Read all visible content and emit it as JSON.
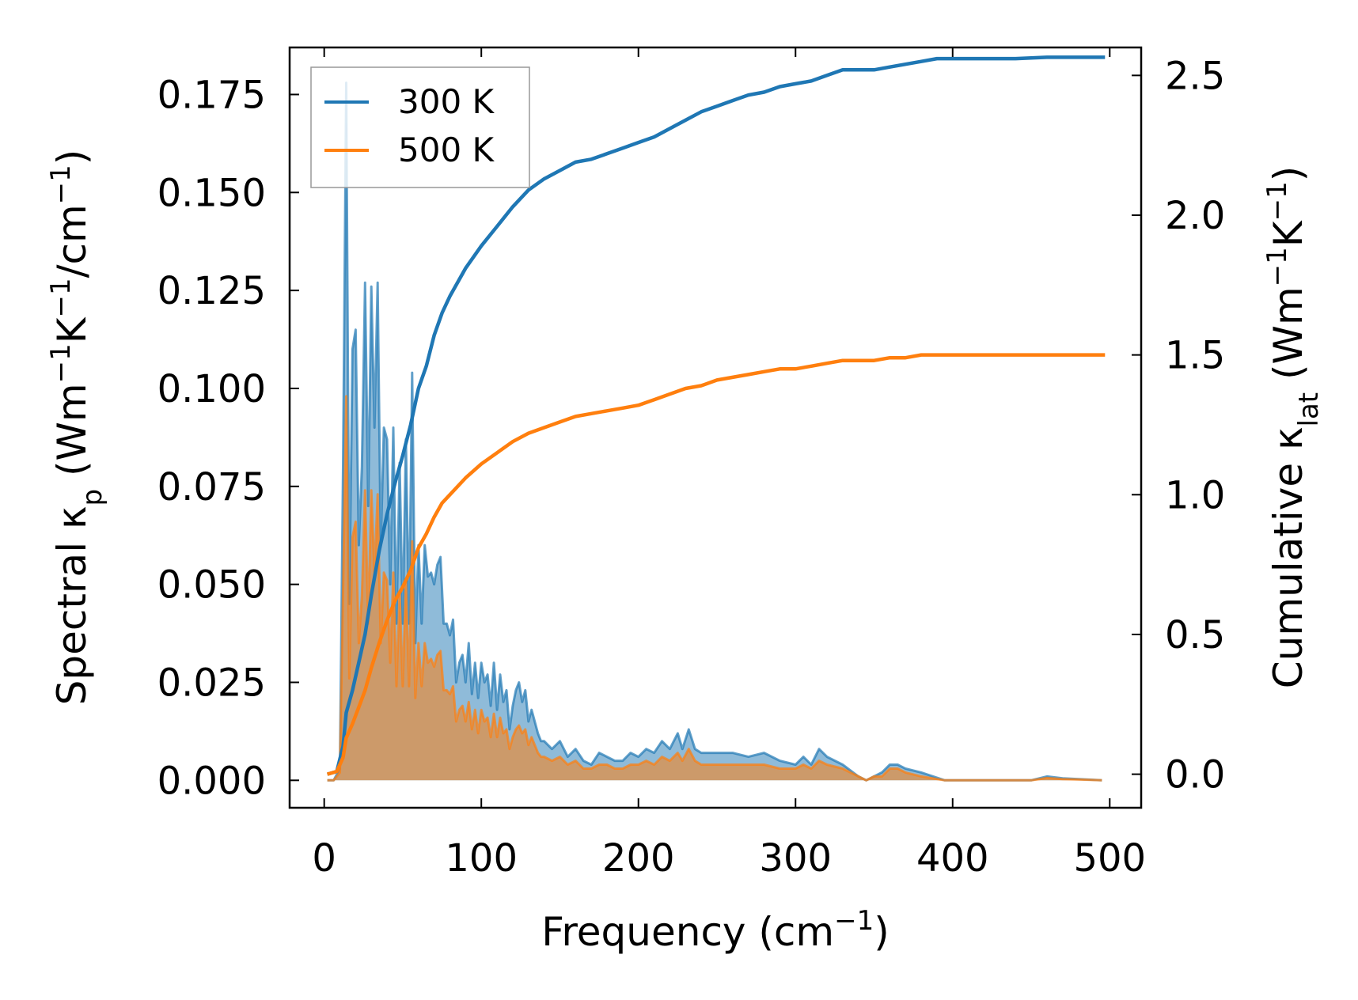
{
  "colors": {
    "series_300": "#1f77b4",
    "series_500": "#ff7f0e",
    "axis": "#000000"
  },
  "chart_data": {
    "type": "line",
    "title": "",
    "xlabel": {
      "base": "Frequency (cm",
      "sup": "−1",
      "tail": ")"
    },
    "ylabel_left": {
      "base": "Spectral κ",
      "sub": "p",
      "unit": " (Wm",
      "sup1": "−1",
      "k": "K",
      "sup2": "−1",
      "slash": "/cm",
      "sup3": "−1",
      "close": ")"
    },
    "ylabel_right": {
      "base": "Cumulative κ",
      "sub": "lat",
      "unit": " (Wm",
      "sup1": "−1",
      "k": "K",
      "sup2": "−1",
      "close": ")"
    },
    "xlim": [
      -22,
      520
    ],
    "ylim_left": [
      -0.007,
      0.187
    ],
    "ylim_right": [
      -0.12,
      2.6
    ],
    "x_ticks": [
      0,
      100,
      200,
      300,
      400,
      500
    ],
    "x_tick_labels": [
      "0",
      "100",
      "200",
      "300",
      "400",
      "500"
    ],
    "y_left_ticks": [
      0.0,
      0.025,
      0.05,
      0.075,
      0.1,
      0.125,
      0.15,
      0.175
    ],
    "y_left_tick_labels": [
      "0.000",
      "0.025",
      "0.050",
      "0.075",
      "0.100",
      "0.125",
      "0.150",
      "0.175"
    ],
    "y_right_ticks": [
      0.0,
      0.5,
      1.0,
      1.5,
      2.0,
      2.5
    ],
    "y_right_tick_labels": [
      "0.0",
      "0.5",
      "1.0",
      "1.5",
      "2.0",
      "2.5"
    ],
    "legend": {
      "position": "top-left",
      "entries": [
        "300 K",
        "500 K"
      ]
    },
    "spectral": [
      {
        "name": "300 K",
        "x": [
          2,
          6,
          10,
          12,
          14,
          16,
          18,
          20,
          22,
          24,
          26,
          28,
          30,
          32,
          34,
          36,
          38,
          40,
          42,
          44,
          46,
          48,
          50,
          52,
          54,
          56,
          58,
          60,
          62,
          64,
          66,
          68,
          70,
          72,
          74,
          76,
          78,
          80,
          82,
          84,
          86,
          88,
          90,
          92,
          94,
          96,
          98,
          100,
          102,
          104,
          106,
          108,
          110,
          112,
          114,
          116,
          118,
          120,
          122,
          124,
          126,
          128,
          130,
          132,
          134,
          136,
          138,
          140,
          145,
          150,
          155,
          160,
          165,
          170,
          175,
          180,
          185,
          190,
          195,
          200,
          205,
          210,
          215,
          220,
          225,
          228,
          232,
          236,
          240,
          250,
          260,
          270,
          280,
          290,
          300,
          305,
          310,
          315,
          320,
          330,
          340,
          345,
          350,
          355,
          360,
          365,
          370,
          380,
          395,
          410,
          430,
          450,
          460,
          470,
          480,
          495
        ],
        "y": [
          0.0,
          0.0,
          0.003,
          0.08,
          0.178,
          0.045,
          0.11,
          0.115,
          0.06,
          0.08,
          0.127,
          0.07,
          0.126,
          0.09,
          0.127,
          0.06,
          0.09,
          0.087,
          0.05,
          0.09,
          0.04,
          0.081,
          0.04,
          0.087,
          0.04,
          0.104,
          0.035,
          0.06,
          0.04,
          0.06,
          0.052,
          0.053,
          0.05,
          0.055,
          0.057,
          0.04,
          0.04,
          0.037,
          0.041,
          0.025,
          0.03,
          0.032,
          0.025,
          0.035,
          0.022,
          0.03,
          0.021,
          0.03,
          0.025,
          0.027,
          0.019,
          0.03,
          0.018,
          0.027,
          0.02,
          0.023,
          0.013,
          0.019,
          0.023,
          0.025,
          0.02,
          0.023,
          0.015,
          0.018,
          0.015,
          0.012,
          0.01,
          0.01,
          0.008,
          0.01,
          0.006,
          0.008,
          0.005,
          0.004,
          0.007,
          0.006,
          0.005,
          0.005,
          0.007,
          0.006,
          0.008,
          0.007,
          0.01,
          0.008,
          0.012,
          0.008,
          0.013,
          0.008,
          0.007,
          0.007,
          0.007,
          0.006,
          0.007,
          0.005,
          0.004,
          0.006,
          0.004,
          0.008,
          0.006,
          0.004,
          0.001,
          0.0,
          0.001,
          0.002,
          0.004,
          0.004,
          0.003,
          0.002,
          0.0,
          0.0,
          0.0,
          0.0,
          0.001,
          0.0005,
          0.0003,
          0.0
        ]
      },
      {
        "name": "500 K",
        "x": [
          2,
          6,
          10,
          12,
          14,
          16,
          18,
          20,
          22,
          24,
          26,
          28,
          30,
          32,
          34,
          36,
          38,
          40,
          42,
          44,
          46,
          48,
          50,
          52,
          54,
          56,
          58,
          60,
          62,
          64,
          66,
          68,
          70,
          72,
          74,
          76,
          78,
          80,
          82,
          84,
          86,
          88,
          90,
          92,
          94,
          96,
          98,
          100,
          102,
          104,
          106,
          108,
          110,
          112,
          114,
          116,
          118,
          120,
          122,
          124,
          126,
          128,
          130,
          132,
          134,
          136,
          138,
          140,
          145,
          150,
          155,
          160,
          165,
          170,
          175,
          180,
          185,
          190,
          195,
          200,
          205,
          210,
          215,
          220,
          225,
          228,
          232,
          236,
          240,
          250,
          260,
          270,
          280,
          290,
          300,
          305,
          310,
          315,
          320,
          330,
          340,
          345,
          350,
          355,
          360,
          365,
          370,
          380,
          395,
          410,
          430,
          450,
          460,
          470,
          480,
          495
        ],
        "y": [
          0.0,
          0.0,
          0.002,
          0.048,
          0.098,
          0.026,
          0.062,
          0.066,
          0.035,
          0.047,
          0.074,
          0.04,
          0.074,
          0.053,
          0.073,
          0.035,
          0.053,
          0.051,
          0.03,
          0.053,
          0.024,
          0.048,
          0.024,
          0.051,
          0.024,
          0.061,
          0.021,
          0.035,
          0.024,
          0.035,
          0.03,
          0.031,
          0.029,
          0.032,
          0.033,
          0.023,
          0.023,
          0.022,
          0.024,
          0.015,
          0.018,
          0.019,
          0.015,
          0.02,
          0.013,
          0.018,
          0.012,
          0.018,
          0.015,
          0.016,
          0.011,
          0.017,
          0.011,
          0.016,
          0.012,
          0.013,
          0.008,
          0.011,
          0.013,
          0.014,
          0.012,
          0.013,
          0.009,
          0.011,
          0.009,
          0.007,
          0.006,
          0.006,
          0.005,
          0.006,
          0.004,
          0.005,
          0.003,
          0.003,
          0.004,
          0.004,
          0.003,
          0.003,
          0.004,
          0.004,
          0.005,
          0.004,
          0.006,
          0.005,
          0.007,
          0.005,
          0.008,
          0.005,
          0.004,
          0.004,
          0.004,
          0.004,
          0.004,
          0.003,
          0.003,
          0.004,
          0.003,
          0.005,
          0.004,
          0.003,
          0.001,
          0.0,
          0.001,
          0.001,
          0.003,
          0.003,
          0.002,
          0.001,
          0.0,
          0.0,
          0.0,
          0.0,
          0.0006,
          0.0003,
          0.0002,
          0.0
        ]
      }
    ],
    "cumulative": [
      {
        "name": "300 K",
        "x": [
          2,
          8,
          12,
          14,
          18,
          22,
          26,
          30,
          35,
          40,
          45,
          50,
          55,
          60,
          65,
          70,
          75,
          80,
          90,
          100,
          110,
          120,
          130,
          140,
          150,
          160,
          170,
          180,
          190,
          200,
          210,
          220,
          230,
          240,
          250,
          260,
          270,
          280,
          290,
          300,
          310,
          320,
          330,
          340,
          350,
          360,
          370,
          380,
          390,
          400,
          420,
          440,
          460,
          480,
          497
        ],
        "y": [
          0.0,
          0.01,
          0.1,
          0.22,
          0.3,
          0.4,
          0.5,
          0.64,
          0.8,
          0.93,
          1.04,
          1.14,
          1.25,
          1.38,
          1.46,
          1.57,
          1.65,
          1.71,
          1.81,
          1.89,
          1.96,
          2.03,
          2.09,
          2.13,
          2.16,
          2.19,
          2.2,
          2.22,
          2.24,
          2.26,
          2.28,
          2.31,
          2.34,
          2.37,
          2.39,
          2.41,
          2.43,
          2.44,
          2.46,
          2.47,
          2.48,
          2.5,
          2.52,
          2.52,
          2.52,
          2.53,
          2.54,
          2.55,
          2.56,
          2.56,
          2.56,
          2.56,
          2.565,
          2.565,
          2.565
        ]
      },
      {
        "name": "500 K",
        "x": [
          2,
          8,
          12,
          14,
          18,
          22,
          26,
          30,
          35,
          40,
          45,
          50,
          55,
          60,
          65,
          70,
          75,
          80,
          90,
          100,
          110,
          120,
          130,
          140,
          150,
          160,
          170,
          180,
          190,
          200,
          210,
          220,
          230,
          240,
          250,
          260,
          270,
          280,
          290,
          300,
          310,
          320,
          330,
          340,
          350,
          360,
          370,
          380,
          390,
          400,
          420,
          440,
          460,
          480,
          497
        ],
        "y": [
          0.0,
          0.01,
          0.06,
          0.13,
          0.18,
          0.24,
          0.3,
          0.38,
          0.47,
          0.55,
          0.62,
          0.67,
          0.73,
          0.81,
          0.86,
          0.92,
          0.97,
          1.0,
          1.06,
          1.11,
          1.15,
          1.19,
          1.22,
          1.24,
          1.26,
          1.28,
          1.29,
          1.3,
          1.31,
          1.32,
          1.34,
          1.36,
          1.38,
          1.39,
          1.41,
          1.42,
          1.43,
          1.44,
          1.45,
          1.45,
          1.46,
          1.47,
          1.48,
          1.48,
          1.48,
          1.49,
          1.49,
          1.5,
          1.5,
          1.5,
          1.5,
          1.5,
          1.5,
          1.5,
          1.5
        ]
      }
    ]
  }
}
